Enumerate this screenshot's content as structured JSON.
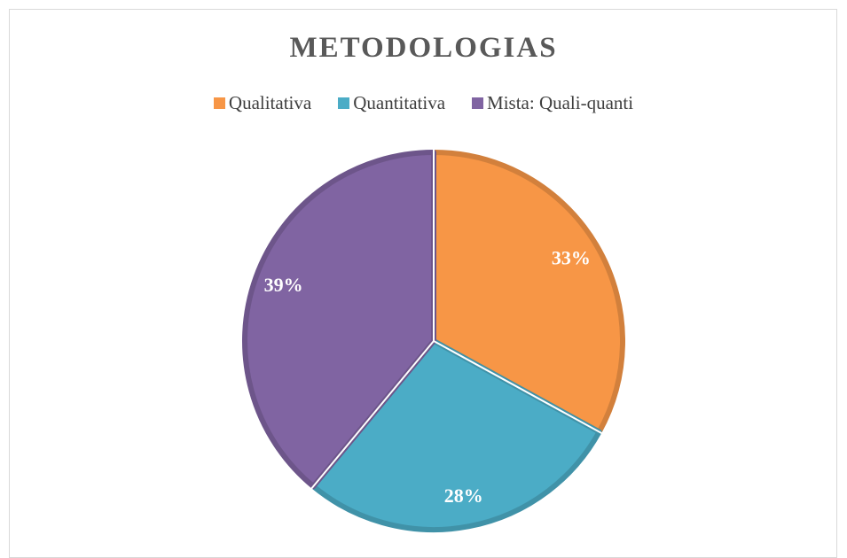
{
  "chart_data": {
    "type": "pie",
    "title": "METODOLOGIAS",
    "categories": [
      "Qualitativa",
      "Quantitativa",
      "Mista: Quali-quanti"
    ],
    "values": [
      33,
      28,
      39
    ],
    "value_labels": [
      "33%",
      "28%",
      "39%"
    ],
    "colors": [
      "#f79646",
      "#4bacc6",
      "#8064a2"
    ],
    "legend": "top"
  }
}
